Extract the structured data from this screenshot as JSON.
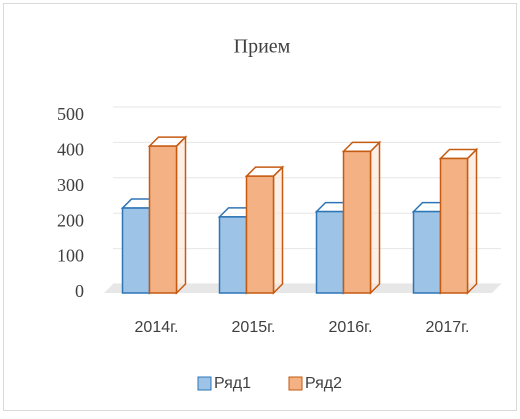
{
  "chart_data": {
    "type": "bar3d",
    "title": "Прием",
    "categories": [
      "2014г.",
      "2015г.",
      "2016г.",
      "2017г."
    ],
    "series": [
      {
        "name": "Ряд1",
        "color": "#9dc3e6",
        "values": [
          240,
          215,
          230,
          230
        ]
      },
      {
        "name": "Ряд2",
        "color": "#f4b183",
        "values": [
          415,
          330,
          400,
          380
        ]
      }
    ],
    "ylim": [
      0,
      500
    ],
    "yticks": [
      0,
      100,
      200,
      300,
      400,
      500
    ],
    "grid": true,
    "legend": "bottom"
  }
}
